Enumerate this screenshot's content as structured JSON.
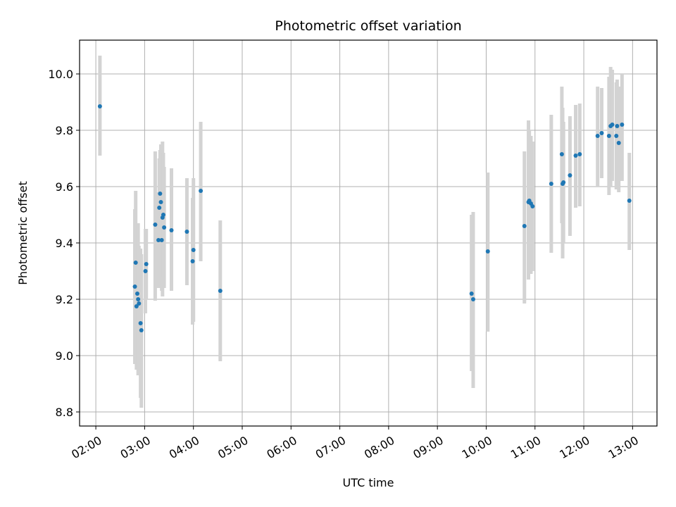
{
  "chart_data": {
    "type": "scatter",
    "title": "Photometric offset variation",
    "xlabel": "UTC time",
    "ylabel": "Photometric offset",
    "x_ticks": [
      "02:00",
      "03:00",
      "04:00",
      "05:00",
      "06:00",
      "07:00",
      "08:00",
      "09:00",
      "10:00",
      "11:00",
      "12:00",
      "13:00"
    ],
    "y_ticks": [
      "8.8",
      "9.0",
      "9.2",
      "9.4",
      "9.6",
      "9.8",
      "10.0"
    ],
    "xlim": [
      "01:40",
      "13:30"
    ],
    "ylim": [
      8.75,
      10.12
    ],
    "grid": true,
    "colors": {
      "point": "#1f77b4",
      "errorbar": "#d3d3d3",
      "grid": "#b0b0b0",
      "axis": "#000000"
    },
    "series": [
      {
        "points": [
          {
            "x": "02:05",
            "y": 9.885,
            "err_low": 9.71,
            "err_high": 10.065
          },
          {
            "x": "02:48",
            "y": 9.245,
            "err_low": 8.97,
            "err_high": 9.52
          },
          {
            "x": "02:49",
            "y": 9.33,
            "err_low": 9.08,
            "err_high": 9.585
          },
          {
            "x": "02:50",
            "y": 9.175,
            "err_low": 8.95,
            "err_high": 9.4
          },
          {
            "x": "02:51",
            "y": 9.22,
            "err_low": 9.0,
            "err_high": 9.44
          },
          {
            "x": "02:52",
            "y": 9.2,
            "err_low": 8.93,
            "err_high": 9.47
          },
          {
            "x": "02:53",
            "y": 9.185,
            "err_low": 8.98,
            "err_high": 9.39
          },
          {
            "x": "02:55",
            "y": 9.115,
            "err_low": 8.85,
            "err_high": 9.38
          },
          {
            "x": "02:56",
            "y": 9.09,
            "err_low": 8.815,
            "err_high": 9.36
          },
          {
            "x": "03:01",
            "y": 9.3,
            "err_low": 9.15,
            "err_high": 9.45
          },
          {
            "x": "03:02",
            "y": 9.325,
            "err_low": 9.2,
            "err_high": 9.45
          },
          {
            "x": "03:13",
            "y": 9.465,
            "err_low": 9.195,
            "err_high": 9.725
          },
          {
            "x": "03:17",
            "y": 9.41,
            "err_low": 9.24,
            "err_high": 9.58
          },
          {
            "x": "03:18",
            "y": 9.525,
            "err_low": 9.35,
            "err_high": 9.7
          },
          {
            "x": "03:19",
            "y": 9.575,
            "err_low": 9.42,
            "err_high": 9.73
          },
          {
            "x": "03:20",
            "y": 9.545,
            "err_low": 9.35,
            "err_high": 9.75
          },
          {
            "x": "03:21",
            "y": 9.41,
            "err_low": 9.23,
            "err_high": 9.59
          },
          {
            "x": "03:22",
            "y": 9.49,
            "err_low": 9.21,
            "err_high": 9.76
          },
          {
            "x": "03:23",
            "y": 9.5,
            "err_low": 9.28,
            "err_high": 9.72
          },
          {
            "x": "03:24",
            "y": 9.455,
            "err_low": 9.24,
            "err_high": 9.67
          },
          {
            "x": "03:33",
            "y": 9.445,
            "err_low": 9.23,
            "err_high": 9.665
          },
          {
            "x": "03:52",
            "y": 9.44,
            "err_low": 9.25,
            "err_high": 9.63
          },
          {
            "x": "03:59",
            "y": 9.335,
            "err_low": 9.11,
            "err_high": 9.56
          },
          {
            "x": "04:00",
            "y": 9.375,
            "err_low": 9.12,
            "err_high": 9.63
          },
          {
            "x": "04:09",
            "y": 9.585,
            "err_low": 9.335,
            "err_high": 9.83
          },
          {
            "x": "04:33",
            "y": 9.23,
            "err_low": 8.98,
            "err_high": 9.48
          },
          {
            "x": "09:42",
            "y": 9.22,
            "err_low": 8.945,
            "err_high": 9.5
          },
          {
            "x": "09:44",
            "y": 9.2,
            "err_low": 8.885,
            "err_high": 9.51
          },
          {
            "x": "10:02",
            "y": 9.37,
            "err_low": 9.085,
            "err_high": 9.65
          },
          {
            "x": "10:47",
            "y": 9.46,
            "err_low": 9.185,
            "err_high": 9.725
          },
          {
            "x": "10:52",
            "y": 9.545,
            "err_low": 9.27,
            "err_high": 9.835
          },
          {
            "x": "10:53",
            "y": 9.55,
            "err_low": 9.3,
            "err_high": 9.8
          },
          {
            "x": "10:55",
            "y": 9.54,
            "err_low": 9.29,
            "err_high": 9.78
          },
          {
            "x": "10:57",
            "y": 9.53,
            "err_low": 9.3,
            "err_high": 9.76
          },
          {
            "x": "11:20",
            "y": 9.61,
            "err_low": 9.365,
            "err_high": 9.855
          },
          {
            "x": "11:33",
            "y": 9.715,
            "err_low": 9.47,
            "err_high": 9.955
          },
          {
            "x": "11:34",
            "y": 9.61,
            "err_low": 9.345,
            "err_high": 9.88
          },
          {
            "x": "11:35",
            "y": 9.615,
            "err_low": 9.4,
            "err_high": 9.83
          },
          {
            "x": "11:43",
            "y": 9.64,
            "err_low": 9.425,
            "err_high": 9.85
          },
          {
            "x": "11:50",
            "y": 9.71,
            "err_low": 9.525,
            "err_high": 9.89
          },
          {
            "x": "11:55",
            "y": 9.715,
            "err_low": 9.53,
            "err_high": 9.895
          },
          {
            "x": "12:17",
            "y": 9.78,
            "err_low": 9.6,
            "err_high": 9.955
          },
          {
            "x": "12:22",
            "y": 9.79,
            "err_low": 9.63,
            "err_high": 9.95
          },
          {
            "x": "12:31",
            "y": 9.78,
            "err_low": 9.57,
            "err_high": 9.99
          },
          {
            "x": "12:33",
            "y": 9.815,
            "err_low": 9.6,
            "err_high": 10.025
          },
          {
            "x": "12:35",
            "y": 9.82,
            "err_low": 9.62,
            "err_high": 10.015
          },
          {
            "x": "12:40",
            "y": 9.78,
            "err_low": 9.59,
            "err_high": 9.97
          },
          {
            "x": "12:41",
            "y": 9.815,
            "err_low": 9.595,
            "err_high": 9.98
          },
          {
            "x": "12:43",
            "y": 9.755,
            "err_low": 9.58,
            "err_high": 9.955
          },
          {
            "x": "12:47",
            "y": 9.82,
            "err_low": 9.62,
            "err_high": 10.0
          },
          {
            "x": "12:56",
            "y": 9.55,
            "err_low": 9.375,
            "err_high": 9.72
          }
        ]
      }
    ]
  }
}
